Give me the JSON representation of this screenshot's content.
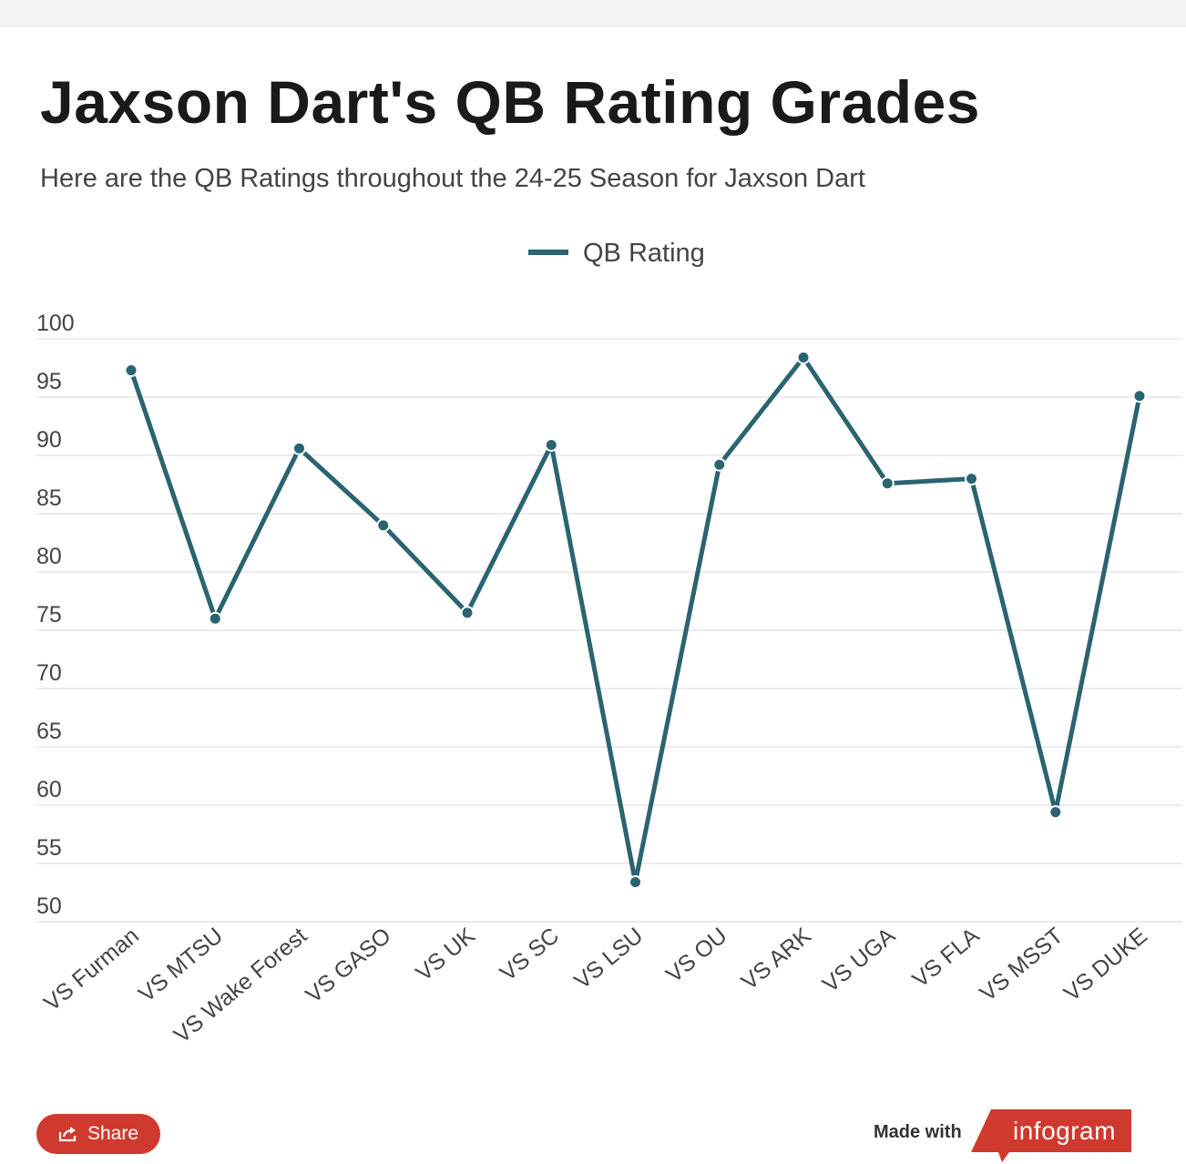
{
  "header": {
    "title": "Jaxson Dart's QB Rating Grades",
    "subtitle": "Here are the QB Ratings throughout the 24-25 Season for Jaxson Dart"
  },
  "footer": {
    "share_label": "Share",
    "made_with": "Made with",
    "brand": "infogram",
    "brand_color": "#d03a2e"
  },
  "chart_data": {
    "type": "line",
    "title": "Jaxson Dart's QB Rating Grades",
    "subtitle": "Here are the QB Ratings throughout the 24-25 Season for Jaxson Dart",
    "categories": [
      "VS Furman",
      "VS MTSU",
      "VS Wake Forest",
      "VS GASO",
      "VS UK",
      "VS SC",
      "VS LSU",
      "VS OU",
      "VS ARK",
      "VS UGA",
      "VS FLA",
      "VS MSST",
      "VS DUKE"
    ],
    "series": [
      {
        "name": "QB Rating",
        "color": "#2a6470",
        "values": [
          97.3,
          76.0,
          90.6,
          84.0,
          76.5,
          90.9,
          53.4,
          89.2,
          98.4,
          87.6,
          88.0,
          59.4,
          95.1
        ]
      }
    ],
    "yticks": [
      50,
      55,
      60,
      65,
      70,
      75,
      80,
      85,
      90,
      95,
      100
    ],
    "ylim": [
      50,
      100
    ],
    "xlabel": "",
    "ylabel": "",
    "grid": true,
    "legend": "top-center"
  }
}
